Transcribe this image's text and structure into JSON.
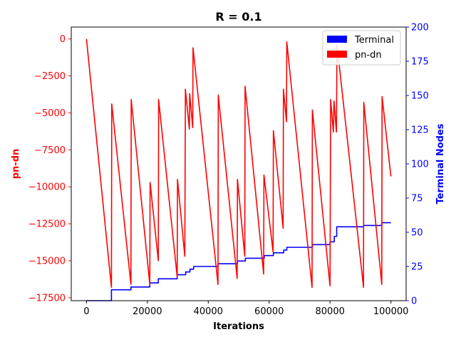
{
  "chart_data": {
    "type": "line",
    "title": "R = 0.1",
    "xlabel": "Iterations",
    "ylabel_left": "pn-dn",
    "ylabel_right": "Terminal Nodes",
    "xlim": [
      -5000,
      105000
    ],
    "ylim_left": [
      -17700,
      800
    ],
    "ylim_right": [
      0,
      200
    ],
    "x_ticks": [
      0,
      20000,
      40000,
      60000,
      80000,
      100000
    ],
    "x_tick_labels": [
      "0",
      "20000",
      "40000",
      "60000",
      "80000",
      "100000"
    ],
    "y_left_ticks": [
      0,
      -2500,
      -5000,
      -7500,
      -10000,
      -12500,
      -15000,
      -17500
    ],
    "y_left_tick_labels": [
      "0",
      "−2500",
      "−5000",
      "−7500",
      "−10000",
      "−12500",
      "−15000",
      "−17500"
    ],
    "y_right_ticks": [
      0,
      25,
      50,
      75,
      100,
      125,
      150,
      175,
      200
    ],
    "y_right_tick_labels": [
      "0",
      "25",
      "50",
      "75",
      "100",
      "125",
      "150",
      "175",
      "200"
    ],
    "grid": false,
    "legend_position": "top-right",
    "colors": {
      "left_axis": "#ff0000",
      "right_axis": "#0000ff"
    },
    "series": [
      {
        "name": "Terminal",
        "axis": "right",
        "color": "#0000ff",
        "step": true,
        "x": [
          0,
          8200,
          14600,
          20800,
          23600,
          29800,
          32600,
          34000,
          35200,
          43200,
          49600,
          52200,
          58400,
          61400,
          64800,
          65800,
          74200,
          80000,
          81400,
          82200,
          91000,
          97000,
          100000
        ],
        "y": [
          0,
          8,
          10,
          13,
          16,
          19,
          21,
          23,
          25,
          27,
          29,
          31,
          33,
          35,
          37,
          39,
          41,
          43,
          47,
          54,
          55,
          57,
          57
        ]
      },
      {
        "name": "pn-dn",
        "axis": "left",
        "color": "#ff0000",
        "step": false,
        "x": [
          0,
          8200,
          8300,
          14600,
          14700,
          20800,
          20900,
          23600,
          23700,
          29800,
          29900,
          32300,
          32500,
          33800,
          33900,
          34900,
          35000,
          43200,
          43300,
          49500,
          49600,
          52000,
          52100,
          58200,
          58300,
          61300,
          61400,
          64600,
          64700,
          65700,
          65800,
          74100,
          74200,
          80000,
          80200,
          81100,
          81300,
          82100,
          82300,
          91000,
          91100,
          97000,
          97100,
          100000
        ],
        "y": [
          0,
          -16800,
          -4400,
          -16600,
          -4100,
          -16600,
          -9700,
          -15000,
          -4100,
          -16100,
          -9500,
          -14700,
          -3400,
          -6100,
          -3700,
          -6000,
          -600,
          -16600,
          -3800,
          -16200,
          -9500,
          -14700,
          -3200,
          -15900,
          -9200,
          -14400,
          -6200,
          -12800,
          -3400,
          -5600,
          -200,
          -16800,
          -4800,
          -16700,
          -4100,
          -6300,
          -4200,
          -6300,
          -400,
          -16800,
          -4300,
          -16600,
          -3900,
          -9300
        ]
      }
    ]
  }
}
